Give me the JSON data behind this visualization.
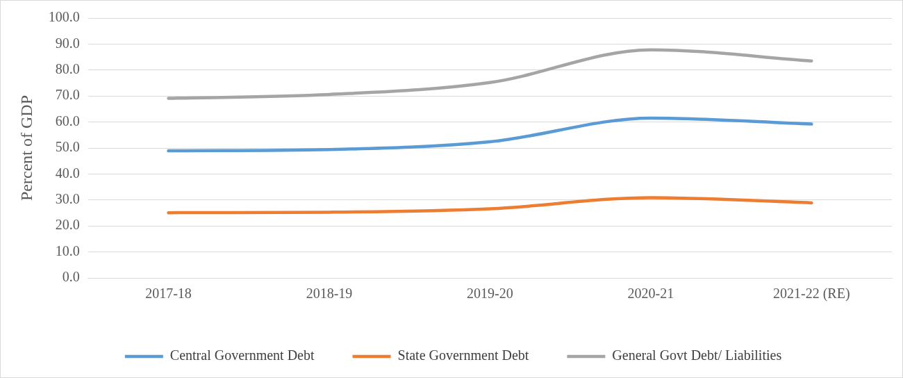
{
  "chart_data": {
    "type": "line",
    "ylabel": "Percent of GDP",
    "categories": [
      "2017-18",
      "2018-19",
      "2019-20",
      "2020-21",
      "2021-22 (RE)"
    ],
    "series": [
      {
        "name": "Central Government Debt",
        "color": "#5b9bd5",
        "values": [
          48.9,
          49.4,
          52.4,
          61.5,
          59.2
        ]
      },
      {
        "name": "State Government Debt",
        "color": "#ed7d31",
        "values": [
          25.1,
          25.3,
          26.6,
          30.9,
          28.9
        ]
      },
      {
        "name": "General Govt Debt/ Liabilities",
        "color": "#a5a5a5",
        "values": [
          69.1,
          70.6,
          75.2,
          87.8,
          83.5
        ]
      }
    ],
    "ylim": [
      0,
      100
    ],
    "yticks": [
      {
        "value": 0,
        "label": "0.0"
      },
      {
        "value": 10,
        "label": "10.0"
      },
      {
        "value": 20,
        "label": "20.0"
      },
      {
        "value": 30,
        "label": "30.0"
      },
      {
        "value": 40,
        "label": "40.0"
      },
      {
        "value": 50,
        "label": "50.0"
      },
      {
        "value": 60,
        "label": "60.0"
      },
      {
        "value": 70,
        "label": "70.0"
      },
      {
        "value": 80,
        "label": "80.0"
      },
      {
        "value": 90,
        "label": "90.0"
      },
      {
        "value": 100,
        "label": "100.0"
      }
    ],
    "grid": "y",
    "legend": "bottom",
    "marker": "none",
    "line_style": "solid"
  }
}
